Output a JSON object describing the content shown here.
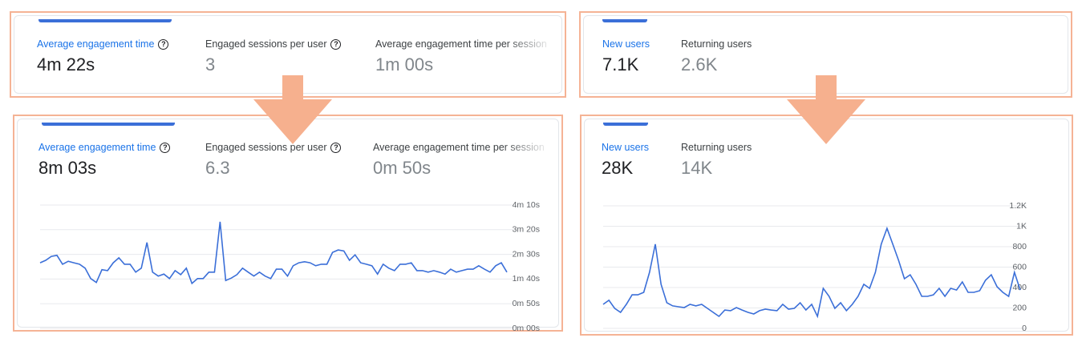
{
  "panels": [
    {
      "metrics": [
        {
          "label": "Average engagement time",
          "value": "4m 22s",
          "help_icon": true,
          "active": true
        },
        {
          "label": "Engaged sessions per user",
          "value": "3",
          "help_icon": true,
          "active": false
        },
        {
          "label": "Average engagement time per session",
          "value": "1m 00s",
          "help_icon": false,
          "active": false
        }
      ]
    },
    {
      "metrics": [
        {
          "label": "Average engagement time",
          "value": "8m 03s",
          "help_icon": true,
          "active": true
        },
        {
          "label": "Engaged sessions per user",
          "value": "6.3",
          "help_icon": true,
          "active": false
        },
        {
          "label": "Average engagement time per session",
          "value": "0m 50s",
          "help_icon": false,
          "active": false
        }
      ]
    },
    {
      "metrics": [
        {
          "label": "New users",
          "value": "7.1K",
          "help_icon": false,
          "active": true
        },
        {
          "label": "Returning users",
          "value": "2.6K",
          "help_icon": false,
          "active": false
        }
      ]
    },
    {
      "metrics": [
        {
          "label": "New users",
          "value": "28K",
          "help_icon": false,
          "active": true
        },
        {
          "label": "Returning users",
          "value": "14K",
          "help_icon": false,
          "active": false
        }
      ]
    }
  ],
  "chart_data": [
    {
      "type": "line",
      "color": "#3b6fd8",
      "grid": true,
      "ylim": [
        0,
        250
      ],
      "yticks": [
        {
          "value": 0,
          "label": "0m 00s"
        },
        {
          "value": 50,
          "label": "0m 50s"
        },
        {
          "value": 100,
          "label": "1m 40s"
        },
        {
          "value": 150,
          "label": "2m 30s"
        },
        {
          "value": 200,
          "label": "3m 20s"
        },
        {
          "value": 250,
          "label": "4m 10s"
        }
      ],
      "values": [
        133,
        138,
        146,
        148,
        130,
        136,
        133,
        130,
        122,
        101,
        93,
        119,
        117,
        133,
        143,
        130,
        130,
        114,
        122,
        174,
        114,
        106,
        110,
        101,
        117,
        109,
        122,
        91,
        101,
        101,
        114,
        114,
        216,
        97,
        102,
        109,
        122,
        114,
        106,
        114,
        106,
        101,
        120,
        120,
        106,
        127,
        133,
        135,
        133,
        127,
        130,
        130,
        154,
        159,
        157,
        138,
        149,
        133,
        130,
        127,
        110,
        130,
        122,
        117,
        130,
        130,
        133,
        117,
        117,
        114,
        117,
        114,
        110,
        120,
        114,
        117,
        120,
        120,
        127,
        120,
        114,
        127,
        133,
        114
      ]
    },
    {
      "type": "line",
      "color": "#3b6fd8",
      "grid": true,
      "ylim": [
        0,
        1200
      ],
      "yticks": [
        0,
        200,
        400,
        600,
        800,
        {
          "value": 1000,
          "label": "1K"
        },
        {
          "value": 1200,
          "label": "1.2K"
        }
      ],
      "values": [
        235,
        275,
        196,
        157,
        235,
        329,
        329,
        353,
        549,
        824,
        431,
        251,
        220,
        212,
        204,
        235,
        220,
        235,
        196,
        157,
        118,
        180,
        173,
        204,
        180,
        157,
        141,
        173,
        188,
        180,
        173,
        235,
        188,
        196,
        251,
        180,
        235,
        118,
        392,
        314,
        196,
        251,
        173,
        235,
        314,
        431,
        392,
        549,
        824,
        980,
        824,
        667,
        486,
        525,
        431,
        314,
        314,
        329,
        392,
        314,
        392,
        376,
        455,
        353,
        353,
        369,
        471,
        525,
        408,
        353,
        314,
        549,
        376
      ]
    }
  ]
}
